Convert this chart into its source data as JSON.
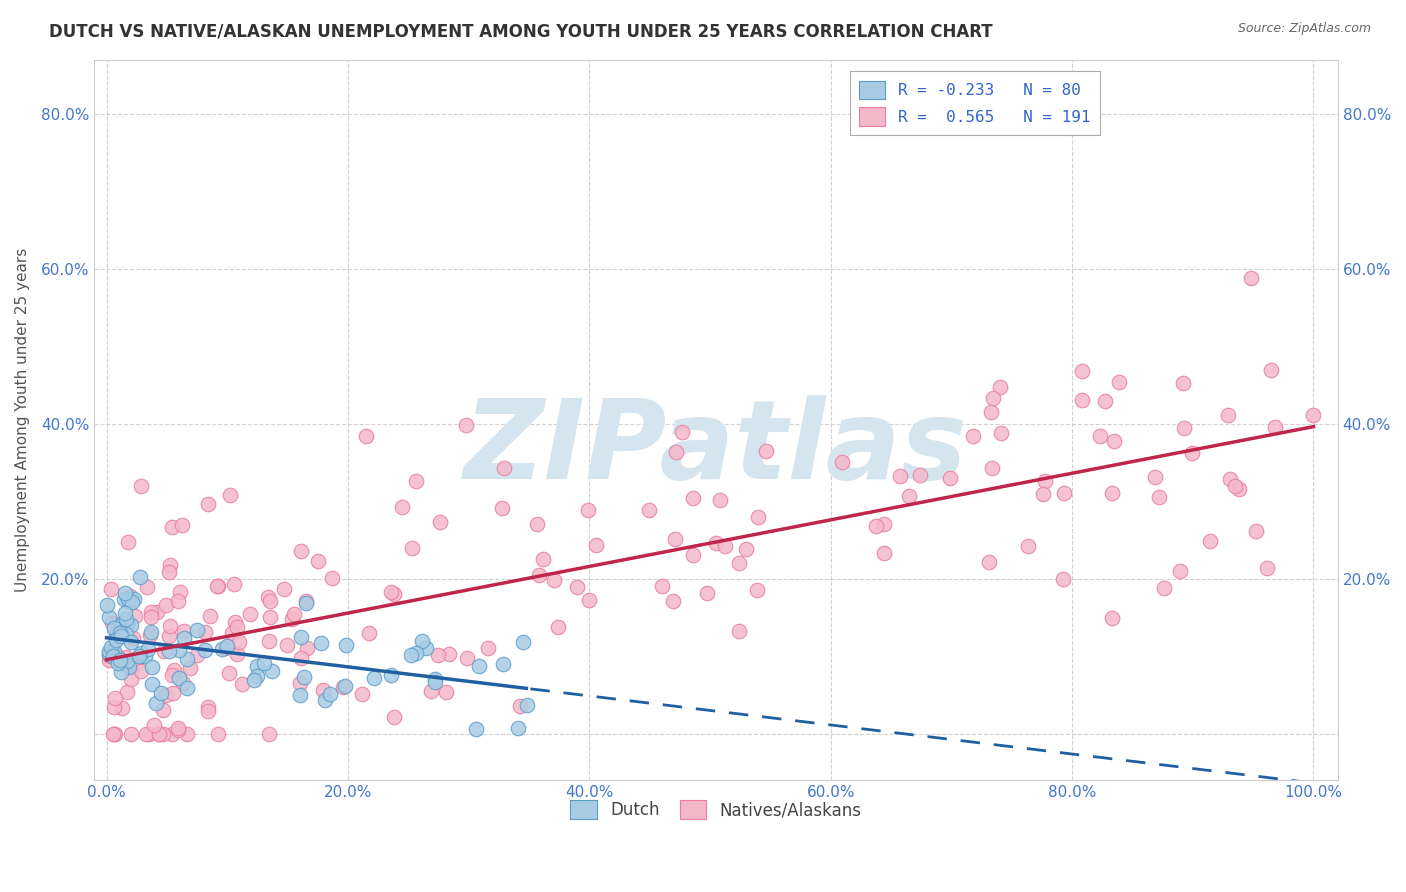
{
  "title": "DUTCH VS NATIVE/ALASKAN UNEMPLOYMENT AMONG YOUTH UNDER 25 YEARS CORRELATION CHART",
  "source": "Source: ZipAtlas.com",
  "ylabel": "Unemployment Among Youth under 25 years",
  "xlim": [
    -0.01,
    1.02
  ],
  "ylim": [
    -0.06,
    0.87
  ],
  "xticks": [
    0.0,
    0.2,
    0.4,
    0.6,
    0.8,
    1.0
  ],
  "yticks": [
    0.0,
    0.2,
    0.4,
    0.6,
    0.8
  ],
  "dutch_color": "#a8cce4",
  "dutch_edge": "#5b9dc9",
  "native_color": "#f4b8cb",
  "native_edge": "#e87da0",
  "trendline_dutch_color": "#2060a0",
  "trendline_native_color": "#c0254a",
  "watermark": "ZIPatlas",
  "watermark_color": "#d5e5f0",
  "background_color": "#ffffff",
  "grid_color": "#cccccc",
  "tick_color": "#4477cc",
  "title_color": "#333333",
  "ylabel_color": "#555555",
  "legend_text_color": "#3366cc"
}
